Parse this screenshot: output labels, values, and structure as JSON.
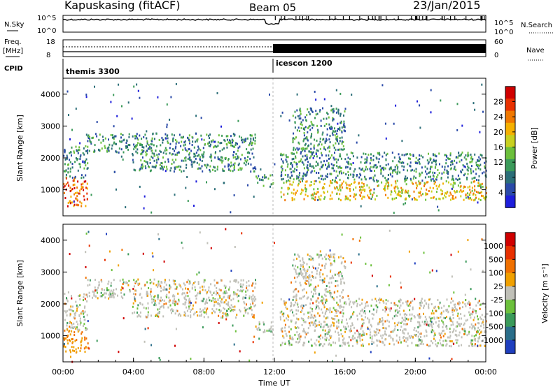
{
  "header": {
    "station": "Kapuskasing (fitACF)",
    "beam": "Beam 05",
    "date": "23/Jan/2015"
  },
  "noise_panel": {
    "left_label": "N.Sky",
    "right_label": "N.Search",
    "ticks": [
      "10^5",
      "10^0"
    ]
  },
  "freq_panel": {
    "left_label_line1": "Freq.",
    "left_label_line2": "[MHz]",
    "left_ticks": [
      "18",
      "8"
    ],
    "right_ticks": [
      "60",
      "0"
    ],
    "right_label": "Nave"
  },
  "cpid_panel": {
    "label": "CPID",
    "segments": [
      {
        "name": "themis 3300",
        "start_h": 0
      },
      {
        "name": "icescon 1200",
        "start_h": 12
      }
    ]
  },
  "chart_data": [
    {
      "type": "heatmap",
      "title": "Power",
      "ylabel": "Slant Range [km]",
      "xlabel": "Time UT",
      "xlim": [
        0,
        24
      ],
      "ylim": [
        180,
        4500
      ],
      "y_ticks": [
        "1000",
        "2000",
        "3000",
        "4000"
      ],
      "x_ticks": [
        "00:00",
        "04:00",
        "08:00",
        "12:00",
        "16:00",
        "20:00",
        "00:00"
      ],
      "colorbar": {
        "label": "Power [dB]",
        "ticks": [
          "4",
          "8",
          "12",
          "16",
          "20",
          "24",
          "28"
        ],
        "colors": [
          "#1e1edc",
          "#2a4aa8",
          "#2b6e78",
          "#3b9a5a",
          "#6cc03c",
          "#c8d020",
          "#f5b000",
          "#f07800",
          "#e83000",
          "#d00000"
        ]
      },
      "echo_regions": [
        {
          "t0": 0.0,
          "t1": 1.4,
          "r0": 500,
          "r1": 2400
        },
        {
          "t0": 1.3,
          "t1": 3.8,
          "r0": 2200,
          "r1": 2800
        },
        {
          "t0": 3.9,
          "t1": 10.9,
          "r0": 1600,
          "r1": 2800
        },
        {
          "t0": 10.9,
          "t1": 11.9,
          "r0": 1100,
          "r1": 1500
        },
        {
          "t0": 12.3,
          "t1": 24.0,
          "r0": 700,
          "r1": 2200
        },
        {
          "t0": 13.0,
          "t1": 16.0,
          "r0": 2200,
          "r1": 3600
        }
      ]
    },
    {
      "type": "heatmap",
      "title": "Velocity",
      "ylabel": "Slant Range [km]",
      "xlabel": "Time UT",
      "xlim": [
        0,
        24
      ],
      "ylim": [
        180,
        4500
      ],
      "y_ticks": [
        "1000",
        "2000",
        "3000",
        "4000"
      ],
      "x_ticks": [
        "00:00",
        "04:00",
        "08:00",
        "12:00",
        "16:00",
        "20:00",
        "00:00"
      ],
      "colorbar": {
        "label": "Velocity [m s⁻¹]",
        "ticks": [
          "1000",
          "500",
          "100",
          "25",
          "-25",
          "-100",
          "-500",
          "-1000"
        ],
        "colors": [
          "#1f3fbf",
          "#2a6e8a",
          "#3a9a5a",
          "#6cc03c",
          "#c0c0b8",
          "#f0a000",
          "#f07000",
          "#e83000",
          "#d00000"
        ]
      }
    }
  ]
}
